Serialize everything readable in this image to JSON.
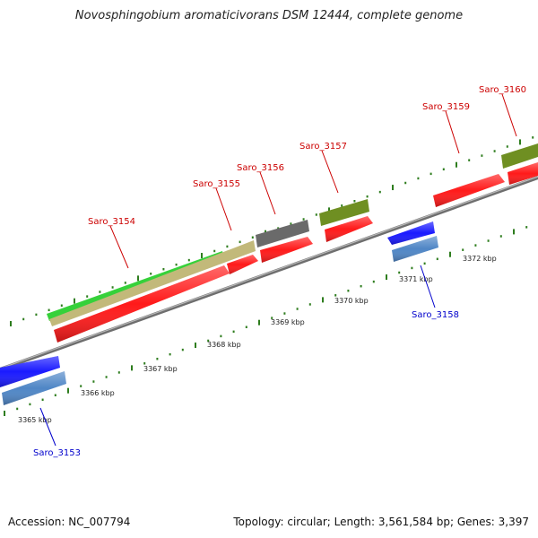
{
  "title": "Novosphingobium aromaticivorans DSM 12444, complete genome",
  "footer": {
    "accession": "Accession: NC_007794",
    "summary": "Topology: circular; Length: 3,561,584 bp; Genes: 3,397"
  },
  "colors": {
    "forward_label": "#cc0000",
    "reverse_label": "#0000cc",
    "backbone": "#8a8a8a",
    "tick": "#2e7d1e",
    "cds_red": "#ff1a1a",
    "cds_blue": "#1a1aff",
    "cds_steel": "#4f86c6",
    "cds_olive": "#6f8f22",
    "cds_gray": "#6a6a6a",
    "cds_khaki": "#c2b97a",
    "cds_green": "#36d13a"
  },
  "scale_labels": [
    "3365 kbp",
    "3366 kbp",
    "3367 kbp",
    "3368 kbp",
    "3369 kbp",
    "3370 kbp",
    "3371 kbp",
    "3372 kbp"
  ],
  "genes": [
    {
      "name": "Saro_3153",
      "strand": "reverse"
    },
    {
      "name": "Saro_3154",
      "strand": "forward"
    },
    {
      "name": "Saro_3155",
      "strand": "forward"
    },
    {
      "name": "Saro_3156",
      "strand": "forward"
    },
    {
      "name": "Saro_3157",
      "strand": "forward"
    },
    {
      "name": "Saro_3158",
      "strand": "reverse"
    },
    {
      "name": "Saro_3159",
      "strand": "forward"
    },
    {
      "name": "Saro_3160",
      "strand": "forward"
    }
  ]
}
